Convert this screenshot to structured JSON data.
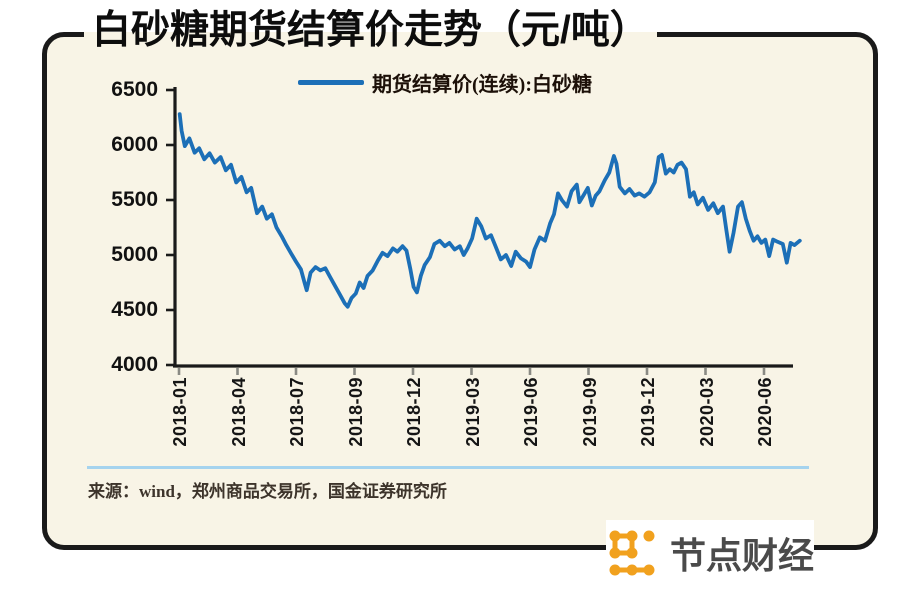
{
  "card": {
    "background_color": "#f8f4e6",
    "border_color": "#1a1a1a"
  },
  "source_note": "来源：wind，郑州商品交易所，国金证券研究所",
  "logo": {
    "text": "节点财经",
    "icon": "dot-grid-nodes",
    "icon_color": "#f1a11e",
    "text_color": "#4a4a4a"
  },
  "separator_color": "#a5d3ee",
  "chart_data": {
    "type": "line",
    "title": "白砂糖期货结算价走势（元/吨）",
    "legend_position": "top",
    "grid": false,
    "ylim": [
      4000,
      6500
    ],
    "yticks": [
      6500,
      6000,
      5500,
      5000,
      4500,
      4000
    ],
    "xticks": [
      "2018-01",
      "2018-04",
      "2018-07",
      "2018-09",
      "2018-12",
      "2019-03",
      "2019-06",
      "2019-09",
      "2019-12",
      "2020-03",
      "2020-06"
    ],
    "series": [
      {
        "name": "期货结算价(连续):白砂糖",
        "color": "#1c6fb7",
        "points": [
          [
            "2018-01-02",
            6280
          ],
          [
            "2018-01-05",
            6130
          ],
          [
            "2018-01-10",
            5990
          ],
          [
            "2018-01-17",
            6060
          ],
          [
            "2018-01-25",
            5930
          ],
          [
            "2018-02-02",
            5970
          ],
          [
            "2018-02-10",
            5870
          ],
          [
            "2018-02-18",
            5925
          ],
          [
            "2018-02-26",
            5840
          ],
          [
            "2018-03-05",
            5890
          ],
          [
            "2018-03-13",
            5770
          ],
          [
            "2018-03-21",
            5820
          ],
          [
            "2018-03-29",
            5660
          ],
          [
            "2018-04-07",
            5710
          ],
          [
            "2018-04-15",
            5570
          ],
          [
            "2018-04-22",
            5610
          ],
          [
            "2018-05-01",
            5380
          ],
          [
            "2018-05-09",
            5440
          ],
          [
            "2018-05-16",
            5330
          ],
          [
            "2018-05-24",
            5370
          ],
          [
            "2018-06-01",
            5250
          ],
          [
            "2018-06-09",
            5170
          ],
          [
            "2018-06-16",
            5090
          ],
          [
            "2018-06-24",
            5010
          ],
          [
            "2018-07-01",
            4940
          ],
          [
            "2018-07-06",
            4870
          ],
          [
            "2018-07-10",
            4740
          ],
          [
            "2018-07-12",
            4680
          ],
          [
            "2018-07-16",
            4840
          ],
          [
            "2018-07-21",
            4890
          ],
          [
            "2018-07-26",
            4860
          ],
          [
            "2018-08-01",
            4880
          ],
          [
            "2018-08-06",
            4800
          ],
          [
            "2018-08-11",
            4720
          ],
          [
            "2018-08-16",
            4640
          ],
          [
            "2018-08-21",
            4560
          ],
          [
            "2018-08-24",
            4530
          ],
          [
            "2018-08-28",
            4610
          ],
          [
            "2018-09-03",
            4650
          ],
          [
            "2018-09-09",
            4750
          ],
          [
            "2018-09-15",
            4700
          ],
          [
            "2018-09-21",
            4810
          ],
          [
            "2018-09-29",
            4860
          ],
          [
            "2018-10-07",
            4950
          ],
          [
            "2018-10-14",
            5020
          ],
          [
            "2018-10-22",
            4990
          ],
          [
            "2018-10-30",
            5060
          ],
          [
            "2018-11-07",
            5030
          ],
          [
            "2018-11-15",
            5080
          ],
          [
            "2018-11-21",
            5040
          ],
          [
            "2018-11-27",
            4870
          ],
          [
            "2018-12-02",
            4710
          ],
          [
            "2018-12-07",
            4660
          ],
          [
            "2018-12-13",
            4810
          ],
          [
            "2018-12-19",
            4910
          ],
          [
            "2018-12-27",
            4980
          ],
          [
            "2019-01-04",
            5100
          ],
          [
            "2019-01-12",
            5130
          ],
          [
            "2019-01-20",
            5080
          ],
          [
            "2019-01-27",
            5110
          ],
          [
            "2019-02-05",
            5050
          ],
          [
            "2019-02-13",
            5080
          ],
          [
            "2019-02-19",
            5000
          ],
          [
            "2019-02-25",
            5060
          ],
          [
            "2019-03-02",
            5150
          ],
          [
            "2019-03-09",
            5330
          ],
          [
            "2019-03-16",
            5260
          ],
          [
            "2019-03-23",
            5150
          ],
          [
            "2019-04-01",
            5180
          ],
          [
            "2019-04-08",
            5080
          ],
          [
            "2019-04-16",
            4960
          ],
          [
            "2019-04-24",
            5000
          ],
          [
            "2019-05-02",
            4900
          ],
          [
            "2019-05-09",
            5030
          ],
          [
            "2019-05-17",
            4970
          ],
          [
            "2019-05-25",
            4940
          ],
          [
            "2019-06-01",
            4890
          ],
          [
            "2019-06-08",
            5050
          ],
          [
            "2019-06-16",
            5160
          ],
          [
            "2019-06-24",
            5130
          ],
          [
            "2019-07-02",
            5290
          ],
          [
            "2019-07-08",
            5370
          ],
          [
            "2019-07-14",
            5560
          ],
          [
            "2019-07-20",
            5500
          ],
          [
            "2019-07-28",
            5440
          ],
          [
            "2019-08-05",
            5580
          ],
          [
            "2019-08-13",
            5640
          ],
          [
            "2019-08-17",
            5480
          ],
          [
            "2019-08-24",
            5550
          ],
          [
            "2019-08-30",
            5610
          ],
          [
            "2019-09-06",
            5450
          ],
          [
            "2019-09-12",
            5540
          ],
          [
            "2019-09-18",
            5580
          ],
          [
            "2019-09-26",
            5680
          ],
          [
            "2019-10-03",
            5750
          ],
          [
            "2019-10-10",
            5900
          ],
          [
            "2019-10-14",
            5830
          ],
          [
            "2019-10-19",
            5620
          ],
          [
            "2019-10-27",
            5560
          ],
          [
            "2019-11-04",
            5600
          ],
          [
            "2019-11-12",
            5540
          ],
          [
            "2019-11-19",
            5560
          ],
          [
            "2019-11-27",
            5530
          ],
          [
            "2019-12-05",
            5570
          ],
          [
            "2019-12-13",
            5660
          ],
          [
            "2019-12-19",
            5890
          ],
          [
            "2019-12-24",
            5910
          ],
          [
            "2019-12-30",
            5740
          ],
          [
            "2020-01-06",
            5780
          ],
          [
            "2020-01-12",
            5750
          ],
          [
            "2020-01-18",
            5820
          ],
          [
            "2020-01-24",
            5840
          ],
          [
            "2020-02-01",
            5780
          ],
          [
            "2020-02-07",
            5530
          ],
          [
            "2020-02-13",
            5570
          ],
          [
            "2020-02-19",
            5460
          ],
          [
            "2020-02-27",
            5520
          ],
          [
            "2020-03-05",
            5410
          ],
          [
            "2020-03-13",
            5470
          ],
          [
            "2020-03-20",
            5380
          ],
          [
            "2020-03-28",
            5440
          ],
          [
            "2020-04-03",
            5230
          ],
          [
            "2020-04-08",
            5030
          ],
          [
            "2020-04-14",
            5200
          ],
          [
            "2020-04-21",
            5440
          ],
          [
            "2020-04-27",
            5480
          ],
          [
            "2020-05-03",
            5330
          ],
          [
            "2020-05-09",
            5220
          ],
          [
            "2020-05-15",
            5130
          ],
          [
            "2020-05-21",
            5170
          ],
          [
            "2020-05-27",
            5110
          ],
          [
            "2020-06-03",
            5140
          ],
          [
            "2020-06-09",
            4990
          ],
          [
            "2020-06-15",
            5140
          ],
          [
            "2020-06-22",
            5120
          ],
          [
            "2020-06-30",
            5100
          ],
          [
            "2020-07-06",
            4930
          ],
          [
            "2020-07-12",
            5110
          ],
          [
            "2020-07-18",
            5090
          ],
          [
            "2020-07-26",
            5130
          ]
        ]
      }
    ]
  }
}
